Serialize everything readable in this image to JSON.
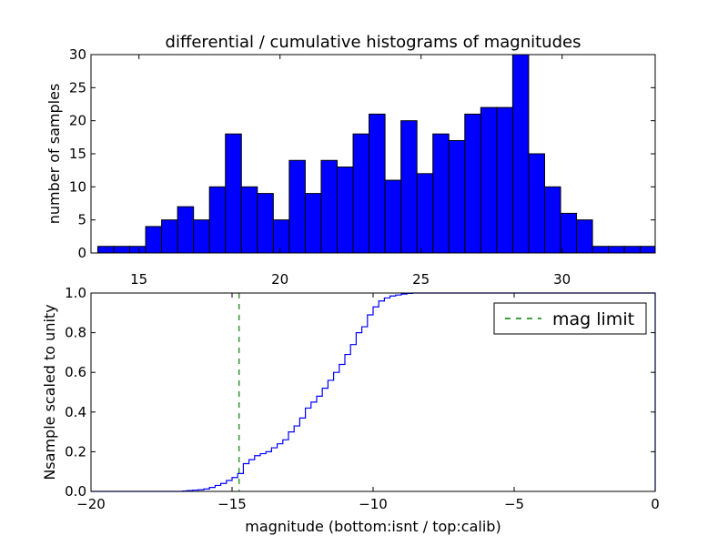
{
  "chart_data": [
    {
      "type": "bar",
      "title": "differential / cumulative histograms of magnitudes",
      "xlabel": "",
      "ylabel": "number of samples",
      "xlim": [
        13.3,
        33.3
      ],
      "ylim": [
        0,
        30
      ],
      "xticks": [
        "15",
        "20",
        "25",
        "30"
      ],
      "yticks": [
        "0",
        "5",
        "10",
        "15",
        "20",
        "25",
        "30"
      ],
      "bar_color": "#0000ff",
      "bin_start": 13.54,
      "bin_width": 0.5657,
      "values": [
        1,
        1,
        1,
        4,
        5,
        7,
        5,
        10,
        18,
        10,
        9,
        5,
        14,
        9,
        14,
        13,
        18,
        21,
        11,
        20,
        12,
        18,
        17,
        21,
        22,
        22,
        30,
        15,
        10,
        6,
        5,
        1,
        1,
        1,
        1
      ]
    },
    {
      "type": "line",
      "xlabel": "magnitude (bottom:isnt / top:calib)",
      "ylabel": "Nsample scaled to unity",
      "xlim": [
        -20,
        0
      ],
      "ylim": [
        0.0,
        1.0
      ],
      "xticks": [
        "−20",
        "−15",
        "−10",
        "−5",
        "0"
      ],
      "yticks": [
        "0.0",
        "0.2",
        "0.4",
        "0.6",
        "0.8",
        "1.0"
      ],
      "series": [
        {
          "style": "step",
          "color": "#0000ff",
          "x": [
            -20.0,
            -17.0,
            -16.75,
            -16.6,
            -16.4,
            -16.2,
            -16.0,
            -15.8,
            -15.6,
            -15.4,
            -15.2,
            -15.0,
            -14.8,
            -14.6,
            -14.4,
            -14.2,
            -14.0,
            -13.8,
            -13.6,
            -13.4,
            -13.2,
            -13.0,
            -12.8,
            -12.6,
            -12.4,
            -12.2,
            -12.0,
            -11.8,
            -11.6,
            -11.4,
            -11.2,
            -11.0,
            -10.8,
            -10.6,
            -10.4,
            -10.2,
            -10.0,
            -9.8,
            -9.6,
            -9.4,
            -9.2,
            -9.0,
            -8.8,
            -8.6,
            -8.4,
            0.0
          ],
          "y": [
            0.0,
            0.0,
            0.002,
            0.004,
            0.006,
            0.008,
            0.012,
            0.02,
            0.03,
            0.04,
            0.055,
            0.07,
            0.09,
            0.14,
            0.16,
            0.18,
            0.19,
            0.2,
            0.22,
            0.24,
            0.26,
            0.3,
            0.33,
            0.37,
            0.42,
            0.45,
            0.48,
            0.52,
            0.56,
            0.6,
            0.64,
            0.69,
            0.74,
            0.8,
            0.83,
            0.89,
            0.93,
            0.96,
            0.975,
            0.985,
            0.99,
            0.995,
            0.998,
            1.0,
            1.0,
            1.0
          ]
        },
        {
          "name": "mag limit",
          "style": "dashed-vertical",
          "color": "#008000",
          "x_value": -14.75
        }
      ],
      "legend_placement": "top-right"
    }
  ]
}
